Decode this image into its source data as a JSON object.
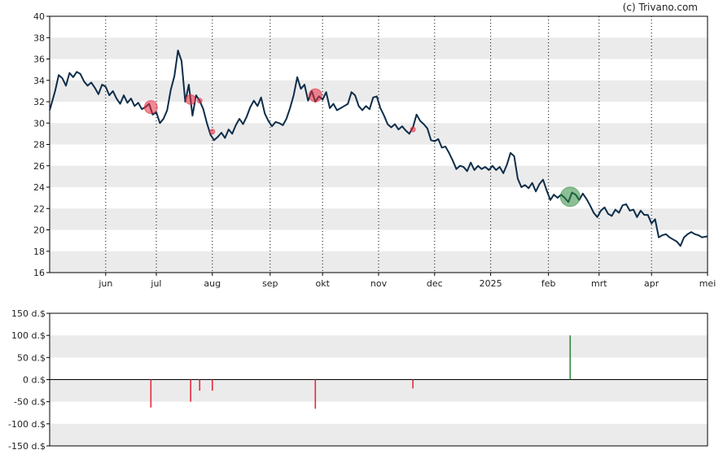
{
  "credit": "(c) Trivano.com",
  "colors": {
    "band": "#ebebeb",
    "price_line": "#0d2d4a",
    "sell": "#e8293e",
    "buy": "#2e8b3d",
    "axis": "#000000",
    "vgrid": "#000000"
  },
  "chart_data": [
    {
      "type": "line",
      "title": "",
      "xlabel": "",
      "ylabel": "",
      "ylim": [
        16,
        40
      ],
      "yticks": [
        16,
        18,
        20,
        22,
        24,
        26,
        28,
        30,
        32,
        34,
        36,
        38,
        40
      ],
      "xlim": [
        "2024-05-03",
        "2025-05-02"
      ],
      "xticks": [
        {
          "label": "jun",
          "date": "2024-06-03"
        },
        {
          "label": "jul",
          "date": "2024-07-01"
        },
        {
          "label": "aug",
          "date": "2024-08-01"
        },
        {
          "label": "sep",
          "date": "2024-09-02"
        },
        {
          "label": "okt",
          "date": "2024-10-01"
        },
        {
          "label": "nov",
          "date": "2024-11-01"
        },
        {
          "label": "dec",
          "date": "2024-12-02"
        },
        {
          "label": "2025",
          "date": "2025-01-02"
        },
        {
          "label": "feb",
          "date": "2025-02-03"
        },
        {
          "label": "mrt",
          "date": "2025-03-03"
        },
        {
          "label": "apr",
          "date": "2025-04-01"
        },
        {
          "label": "mei",
          "date": "2025-05-02"
        }
      ],
      "grid": {
        "horizontal_bands": true,
        "vertical_dotted": true
      },
      "series": [
        {
          "points": [
            [
              "2024-05-03",
              31.2
            ],
            [
              "2024-05-06",
              33.0
            ],
            [
              "2024-05-08",
              34.5
            ],
            [
              "2024-05-10",
              34.2
            ],
            [
              "2024-05-12",
              33.5
            ],
            [
              "2024-05-14",
              34.7
            ],
            [
              "2024-05-16",
              34.3
            ],
            [
              "2024-05-18",
              34.8
            ],
            [
              "2024-05-20",
              34.6
            ],
            [
              "2024-05-22",
              33.9
            ],
            [
              "2024-05-24",
              33.5
            ],
            [
              "2024-05-26",
              33.8
            ],
            [
              "2024-05-28",
              33.3
            ],
            [
              "2024-05-30",
              32.7
            ],
            [
              "2024-06-01",
              33.6
            ],
            [
              "2024-06-03",
              33.4
            ],
            [
              "2024-06-05",
              32.6
            ],
            [
              "2024-06-07",
              33.0
            ],
            [
              "2024-06-09",
              32.3
            ],
            [
              "2024-06-11",
              31.8
            ],
            [
              "2024-06-13",
              32.6
            ],
            [
              "2024-06-15",
              31.9
            ],
            [
              "2024-06-17",
              32.3
            ],
            [
              "2024-06-19",
              31.6
            ],
            [
              "2024-06-21",
              31.9
            ],
            [
              "2024-06-23",
              31.3
            ],
            [
              "2024-06-25",
              31.5
            ],
            [
              "2024-06-27",
              31.8
            ],
            [
              "2024-06-29",
              30.8
            ],
            [
              "2024-07-01",
              31.0
            ],
            [
              "2024-07-03",
              30.0
            ],
            [
              "2024-07-05",
              30.4
            ],
            [
              "2024-07-07",
              31.2
            ],
            [
              "2024-07-09",
              33.1
            ],
            [
              "2024-07-11",
              34.4
            ],
            [
              "2024-07-13",
              36.8
            ],
            [
              "2024-07-15",
              35.8
            ],
            [
              "2024-07-17",
              32.0
            ],
            [
              "2024-07-19",
              33.6
            ],
            [
              "2024-07-21",
              30.7
            ],
            [
              "2024-07-23",
              32.6
            ],
            [
              "2024-07-25",
              32.1
            ],
            [
              "2024-07-27",
              31.3
            ],
            [
              "2024-07-29",
              30.0
            ],
            [
              "2024-07-31",
              28.9
            ],
            [
              "2024-08-02",
              28.4
            ],
            [
              "2024-08-04",
              28.7
            ],
            [
              "2024-08-06",
              29.1
            ],
            [
              "2024-08-08",
              28.6
            ],
            [
              "2024-08-10",
              29.4
            ],
            [
              "2024-08-12",
              29.0
            ],
            [
              "2024-08-14",
              29.8
            ],
            [
              "2024-08-16",
              30.4
            ],
            [
              "2024-08-18",
              29.9
            ],
            [
              "2024-08-20",
              30.6
            ],
            [
              "2024-08-22",
              31.5
            ],
            [
              "2024-08-24",
              32.1
            ],
            [
              "2024-08-26",
              31.6
            ],
            [
              "2024-08-28",
              32.4
            ],
            [
              "2024-08-30",
              30.9
            ],
            [
              "2024-09-01",
              30.2
            ],
            [
              "2024-09-03",
              29.7
            ],
            [
              "2024-09-05",
              30.1
            ],
            [
              "2024-09-07",
              30.0
            ],
            [
              "2024-09-09",
              29.8
            ],
            [
              "2024-09-11",
              30.4
            ],
            [
              "2024-09-13",
              31.4
            ],
            [
              "2024-09-15",
              32.6
            ],
            [
              "2024-09-17",
              34.3
            ],
            [
              "2024-09-19",
              33.2
            ],
            [
              "2024-09-21",
              33.6
            ],
            [
              "2024-09-23",
              32.1
            ],
            [
              "2024-09-25",
              33.0
            ],
            [
              "2024-09-27",
              32.0
            ],
            [
              "2024-09-29",
              32.5
            ],
            [
              "2024-10-01",
              32.2
            ],
            [
              "2024-10-03",
              32.9
            ],
            [
              "2024-10-05",
              31.4
            ],
            [
              "2024-10-07",
              31.8
            ],
            [
              "2024-10-09",
              31.2
            ],
            [
              "2024-10-11",
              31.4
            ],
            [
              "2024-10-13",
              31.6
            ],
            [
              "2024-10-15",
              31.8
            ],
            [
              "2024-10-17",
              32.9
            ],
            [
              "2024-10-19",
              32.6
            ],
            [
              "2024-10-21",
              31.6
            ],
            [
              "2024-10-23",
              31.2
            ],
            [
              "2024-10-25",
              31.6
            ],
            [
              "2024-10-27",
              31.3
            ],
            [
              "2024-10-29",
              32.4
            ],
            [
              "2024-10-31",
              32.5
            ],
            [
              "2024-11-02",
              31.4
            ],
            [
              "2024-11-04",
              30.7
            ],
            [
              "2024-11-06",
              29.9
            ],
            [
              "2024-11-08",
              29.6
            ],
            [
              "2024-11-10",
              29.9
            ],
            [
              "2024-11-12",
              29.4
            ],
            [
              "2024-11-14",
              29.7
            ],
            [
              "2024-11-16",
              29.3
            ],
            [
              "2024-11-18",
              29.0
            ],
            [
              "2024-11-20",
              29.6
            ],
            [
              "2024-11-22",
              30.8
            ],
            [
              "2024-11-24",
              30.2
            ],
            [
              "2024-11-26",
              29.9
            ],
            [
              "2024-11-28",
              29.5
            ],
            [
              "2024-11-30",
              28.4
            ],
            [
              "2024-12-02",
              28.3
            ],
            [
              "2024-12-04",
              28.5
            ],
            [
              "2024-12-06",
              27.7
            ],
            [
              "2024-12-08",
              27.8
            ],
            [
              "2024-12-10",
              27.2
            ],
            [
              "2024-12-12",
              26.5
            ],
            [
              "2024-12-14",
              25.7
            ],
            [
              "2024-12-16",
              26.0
            ],
            [
              "2024-12-18",
              25.9
            ],
            [
              "2024-12-20",
              25.5
            ],
            [
              "2024-12-22",
              26.3
            ],
            [
              "2024-12-24",
              25.6
            ],
            [
              "2024-12-26",
              26.0
            ],
            [
              "2024-12-28",
              25.7
            ],
            [
              "2024-12-30",
              25.9
            ],
            [
              "2025-01-01",
              25.6
            ],
            [
              "2025-01-03",
              26.0
            ],
            [
              "2025-01-05",
              25.6
            ],
            [
              "2025-01-07",
              25.9
            ],
            [
              "2025-01-09",
              25.3
            ],
            [
              "2025-01-11",
              26.1
            ],
            [
              "2025-01-13",
              27.2
            ],
            [
              "2025-01-15",
              26.9
            ],
            [
              "2025-01-17",
              24.8
            ],
            [
              "2025-01-19",
              24.0
            ],
            [
              "2025-01-21",
              24.2
            ],
            [
              "2025-01-23",
              23.9
            ],
            [
              "2025-01-25",
              24.4
            ],
            [
              "2025-01-27",
              23.6
            ],
            [
              "2025-01-29",
              24.3
            ],
            [
              "2025-01-31",
              24.7
            ],
            [
              "2025-02-02",
              23.7
            ],
            [
              "2025-02-04",
              22.8
            ],
            [
              "2025-02-06",
              23.3
            ],
            [
              "2025-02-08",
              23.0
            ],
            [
              "2025-02-10",
              23.3
            ],
            [
              "2025-02-12",
              23.0
            ],
            [
              "2025-02-14",
              22.6
            ],
            [
              "2025-02-16",
              23.5
            ],
            [
              "2025-02-18",
              23.3
            ],
            [
              "2025-02-20",
              22.8
            ],
            [
              "2025-02-22",
              23.4
            ],
            [
              "2025-02-24",
              22.9
            ],
            [
              "2025-02-26",
              22.3
            ],
            [
              "2025-02-28",
              21.6
            ],
            [
              "2025-03-02",
              21.2
            ],
            [
              "2025-03-04",
              21.8
            ],
            [
              "2025-03-06",
              22.1
            ],
            [
              "2025-03-08",
              21.5
            ],
            [
              "2025-03-10",
              21.3
            ],
            [
              "2025-03-12",
              21.9
            ],
            [
              "2025-03-14",
              21.6
            ],
            [
              "2025-03-16",
              22.3
            ],
            [
              "2025-03-18",
              22.4
            ],
            [
              "2025-03-20",
              21.8
            ],
            [
              "2025-03-22",
              21.9
            ],
            [
              "2025-03-24",
              21.2
            ],
            [
              "2025-03-26",
              21.8
            ],
            [
              "2025-03-28",
              21.4
            ],
            [
              "2025-03-30",
              21.4
            ],
            [
              "2025-04-01",
              20.6
            ],
            [
              "2025-04-03",
              21.0
            ],
            [
              "2025-04-05",
              19.3
            ],
            [
              "2025-04-07",
              19.5
            ],
            [
              "2025-04-09",
              19.6
            ],
            [
              "2025-04-11",
              19.3
            ],
            [
              "2025-04-13",
              19.1
            ],
            [
              "2025-04-15",
              18.9
            ],
            [
              "2025-04-17",
              18.5
            ],
            [
              "2025-04-19",
              19.3
            ],
            [
              "2025-04-21",
              19.6
            ],
            [
              "2025-04-23",
              19.8
            ],
            [
              "2025-04-25",
              19.6
            ],
            [
              "2025-04-27",
              19.5
            ],
            [
              "2025-04-29",
              19.3
            ],
            [
              "2025-05-02",
              19.4
            ]
          ]
        }
      ],
      "markers": [
        {
          "date": "2024-06-28",
          "value": 31.5,
          "kind": "sell",
          "size": "large"
        },
        {
          "date": "2024-07-20",
          "value": 32.2,
          "kind": "sell",
          "size": "medium"
        },
        {
          "date": "2024-07-25",
          "value": 32.1,
          "kind": "sell",
          "size": "small"
        },
        {
          "date": "2024-08-01",
          "value": 29.2,
          "kind": "sell",
          "size": "small"
        },
        {
          "date": "2024-09-27",
          "value": 32.6,
          "kind": "sell",
          "size": "large"
        },
        {
          "date": "2024-11-20",
          "value": 29.4,
          "kind": "sell",
          "size": "small"
        },
        {
          "date": "2025-02-15",
          "value": 23.1,
          "kind": "buy",
          "size": "xlarge"
        }
      ]
    },
    {
      "type": "bar",
      "title": "",
      "ylim": [
        -150,
        150
      ],
      "yticks": [
        -150,
        -100,
        -50,
        0,
        50,
        100,
        150
      ],
      "ytick_labels": [
        "-150 d.$",
        "-100 d.$",
        "-50 d.$",
        "0 d.$",
        "50 d.$",
        "100 d.$",
        "150 d.$"
      ],
      "xlim": [
        "2024-05-03",
        "2025-05-02"
      ],
      "bars": [
        {
          "date": "2024-06-28",
          "value": -63
        },
        {
          "date": "2024-07-20",
          "value": -50
        },
        {
          "date": "2024-07-25",
          "value": -25
        },
        {
          "date": "2024-08-01",
          "value": -25
        },
        {
          "date": "2024-09-27",
          "value": -66
        },
        {
          "date": "2024-11-20",
          "value": -20
        },
        {
          "date": "2025-02-15",
          "value": 100
        }
      ]
    }
  ]
}
